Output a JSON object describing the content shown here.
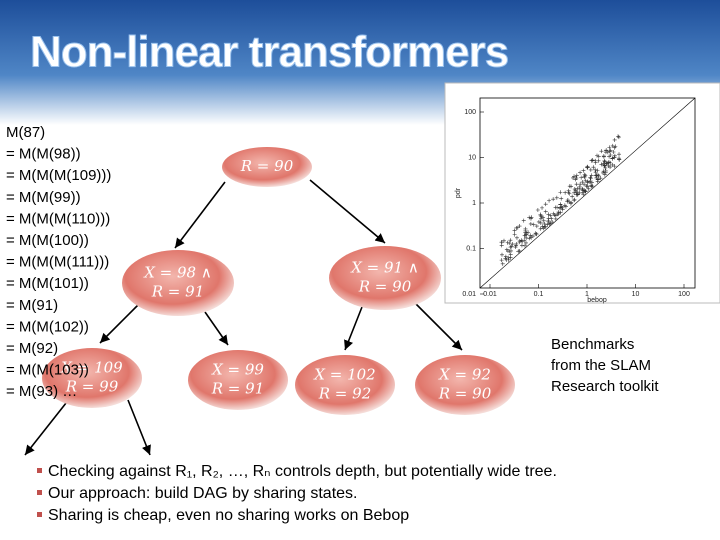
{
  "title": "Non-linear transformers",
  "derivation": [
    "M(87)",
    "= M(M(98))",
    "= M(M(M(109)))",
    "= M(M(99))",
    "= M(M(M(110)))",
    "= M(M(100))",
    "= M(M(M(111)))",
    "= M(M(101))",
    "= M(91)",
    "= M(M(102))",
    "= M(92)",
    "= M(M(103))",
    "= M(93) …"
  ],
  "nodes": [
    {
      "lines": [
        "R = 90"
      ]
    },
    {
      "lines": [
        "X = 98 ∧",
        "R = 91"
      ]
    },
    {
      "lines": [
        "X = 91 ∧",
        "R = 90"
      ]
    },
    {
      "lines": [
        "X = 109",
        "R = 99"
      ]
    },
    {
      "lines": [
        "X = 99",
        "R = 91"
      ]
    },
    {
      "lines": [
        "X = 102",
        "R = 92"
      ]
    },
    {
      "lines": [
        "X = 92",
        "R = 90"
      ]
    }
  ],
  "plot": {
    "xlabel": "bebop",
    "ylabel": "pdr",
    "xticks": [
      "0.01",
      "0.1",
      "1",
      "10",
      "100"
    ],
    "yticks": [
      "100",
      "10",
      "1",
      "0.1",
      "0.01"
    ]
  },
  "caption": [
    "Benchmarks",
    "from the SLAM",
    "Research toolkit"
  ],
  "bullets": [
    "Checking against R₁, R₂, …, Rₙ controls depth, but potentially wide tree.",
    "Our approach: build DAG by sharing states.",
    "Sharing is cheap, even no sharing works on Bebop"
  ]
}
